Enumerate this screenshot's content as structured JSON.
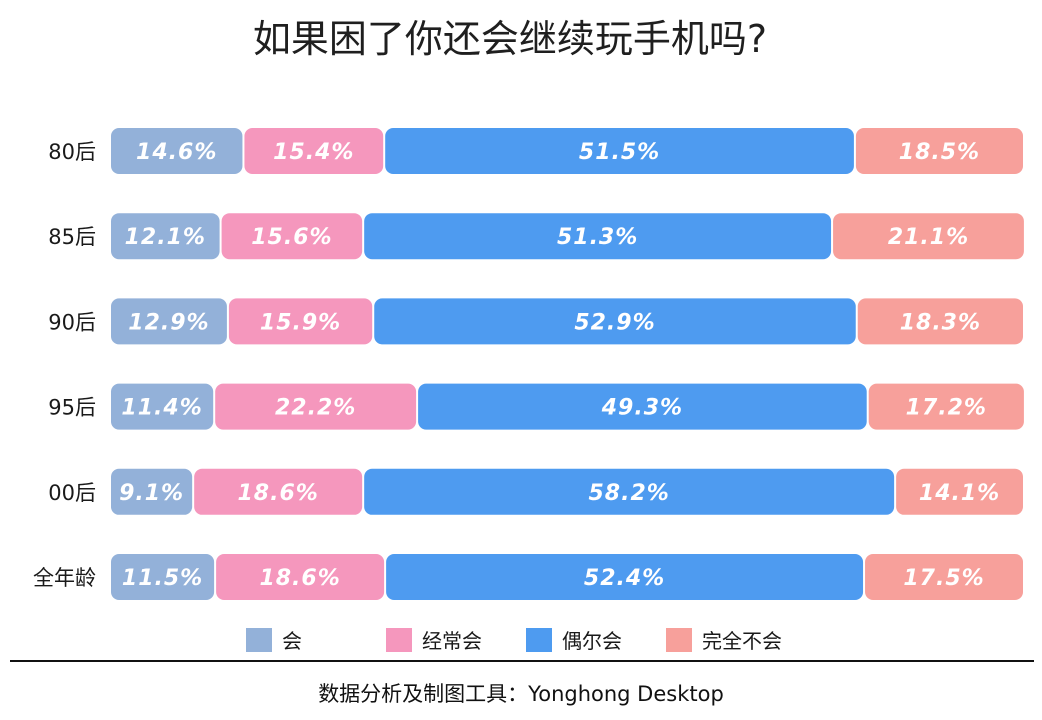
{
  "chart_data": {
    "type": "bar",
    "orientation": "horizontal",
    "stacked": true,
    "normalized_percent": true,
    "title": "如果困了你还会继续玩手机吗?",
    "categories": [
      "80后",
      "85后",
      "90后",
      "95后",
      "00后",
      "全年龄"
    ],
    "series": [
      {
        "name": "会",
        "color": "#93b1d9",
        "values": [
          14.6,
          12.1,
          12.9,
          11.4,
          9.1,
          11.5
        ],
        "labels": [
          "14.6%",
          "12.1%",
          "12.9%",
          "11.4%",
          "9.1%",
          "11.5%"
        ]
      },
      {
        "name": "经常会",
        "color": "#f597bd",
        "values": [
          15.4,
          15.6,
          15.9,
          22.2,
          18.6,
          18.6
        ],
        "labels": [
          "15.4%",
          "15.6%",
          "15.9%",
          "22.2%",
          "18.6%",
          "18.6%"
        ]
      },
      {
        "name": "偶尔会",
        "color": "#4e9bf0",
        "values": [
          51.5,
          51.3,
          52.9,
          49.3,
          58.2,
          52.4
        ],
        "labels": [
          "51.5%",
          "51.3%",
          "52.9%",
          "49.3%",
          "58.2%",
          "52.4%"
        ]
      },
      {
        "name": "完全不会",
        "color": "#f7a09b",
        "values": [
          18.5,
          21.1,
          18.3,
          17.2,
          14.1,
          17.5
        ],
        "labels": [
          "18.5%",
          "21.1%",
          "18.3%",
          "17.2%",
          "14.1%",
          "17.5%"
        ]
      }
    ],
    "xlim": [
      0,
      100
    ],
    "grid": false,
    "legend_position": "bottom"
  },
  "footer": {
    "source_text": "数据分析及制图工具：Yonghong Desktop"
  }
}
